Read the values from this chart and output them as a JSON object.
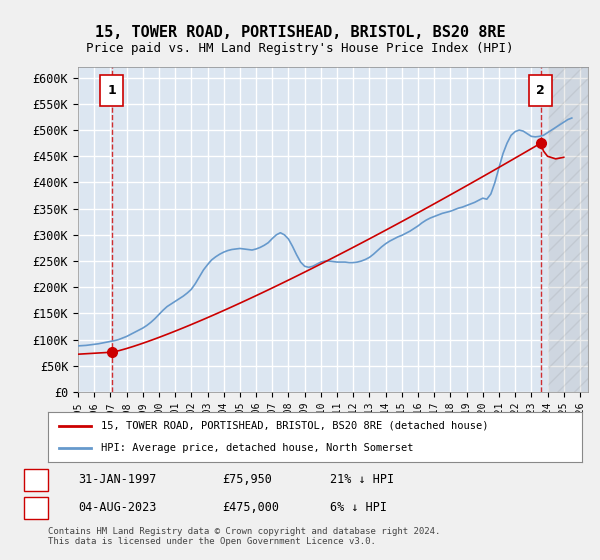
{
  "title": "15, TOWER ROAD, PORTISHEAD, BRISTOL, BS20 8RE",
  "subtitle": "Price paid vs. HM Land Registry's House Price Index (HPI)",
  "ylabel": "",
  "xlabel": "",
  "ylim": [
    0,
    620000
  ],
  "yticks": [
    0,
    50000,
    100000,
    150000,
    200000,
    250000,
    300000,
    350000,
    400000,
    450000,
    500000,
    550000,
    600000
  ],
  "ytick_labels": [
    "£0",
    "£50K",
    "£100K",
    "£150K",
    "£200K",
    "£250K",
    "£300K",
    "£350K",
    "£400K",
    "£450K",
    "£500K",
    "£550K",
    "£600K"
  ],
  "xlim_start": 1995.0,
  "xlim_end": 2026.5,
  "background_color": "#dce6f1",
  "plot_bg_color": "#dce6f1",
  "grid_color": "#ffffff",
  "hpi_color": "#6699cc",
  "price_color": "#cc0000",
  "point1_year": 1997.083,
  "point1_price": 75950,
  "point2_year": 2023.583,
  "point2_price": 475000,
  "legend_line1": "15, TOWER ROAD, PORTISHEAD, BRISTOL, BS20 8RE (detached house)",
  "legend_line2": "HPI: Average price, detached house, North Somerset",
  "table_row1": [
    "1",
    "31-JAN-1997",
    "£75,950",
    "21% ↓ HPI"
  ],
  "table_row2": [
    "2",
    "04-AUG-2023",
    "£475,000",
    "6% ↓ HPI"
  ],
  "copyright": "Contains HM Land Registry data © Crown copyright and database right 2024.\nThis data is licensed under the Open Government Licence v3.0.",
  "future_shade_start": 2024.0,
  "hpi_data_x": [
    1995,
    1995.25,
    1995.5,
    1995.75,
    1996,
    1996.25,
    1996.5,
    1996.75,
    1997,
    1997.25,
    1997.5,
    1997.75,
    1998,
    1998.25,
    1998.5,
    1998.75,
    1999,
    1999.25,
    1999.5,
    1999.75,
    2000,
    2000.25,
    2000.5,
    2000.75,
    2001,
    2001.25,
    2001.5,
    2001.75,
    2002,
    2002.25,
    2002.5,
    2002.75,
    2003,
    2003.25,
    2003.5,
    2003.75,
    2004,
    2004.25,
    2004.5,
    2004.75,
    2005,
    2005.25,
    2005.5,
    2005.75,
    2006,
    2006.25,
    2006.5,
    2006.75,
    2007,
    2007.25,
    2007.5,
    2007.75,
    2008,
    2008.25,
    2008.5,
    2008.75,
    2009,
    2009.25,
    2009.5,
    2009.75,
    2010,
    2010.25,
    2010.5,
    2010.75,
    2011,
    2011.25,
    2011.5,
    2011.75,
    2012,
    2012.25,
    2012.5,
    2012.75,
    2013,
    2013.25,
    2013.5,
    2013.75,
    2014,
    2014.25,
    2014.5,
    2014.75,
    2015,
    2015.25,
    2015.5,
    2015.75,
    2016,
    2016.25,
    2016.5,
    2016.75,
    2017,
    2017.25,
    2017.5,
    2017.75,
    2018,
    2018.25,
    2018.5,
    2018.75,
    2019,
    2019.25,
    2019.5,
    2019.75,
    2020,
    2020.25,
    2020.5,
    2020.75,
    2021,
    2021.25,
    2021.5,
    2021.75,
    2022,
    2022.25,
    2022.5,
    2022.75,
    2023,
    2023.25,
    2023.5,
    2023.75,
    2024,
    2024.25,
    2024.5,
    2024.75,
    2025,
    2025.25,
    2025.5
  ],
  "hpi_data_y": [
    88000,
    88500,
    89000,
    90000,
    91000,
    92000,
    93500,
    95000,
    96500,
    98000,
    100000,
    103000,
    106000,
    110000,
    114000,
    118000,
    122000,
    127000,
    133000,
    140000,
    148000,
    156000,
    163000,
    168000,
    173000,
    178000,
    183000,
    189000,
    196000,
    207000,
    220000,
    233000,
    243000,
    252000,
    258000,
    263000,
    267000,
    270000,
    272000,
    273000,
    274000,
    273000,
    272000,
    271000,
    273000,
    276000,
    280000,
    285000,
    293000,
    300000,
    304000,
    300000,
    292000,
    278000,
    262000,
    248000,
    240000,
    238000,
    240000,
    244000,
    248000,
    250000,
    250000,
    249000,
    248000,
    248000,
    248000,
    247000,
    247000,
    248000,
    250000,
    253000,
    257000,
    263000,
    270000,
    277000,
    283000,
    288000,
    292000,
    296000,
    299000,
    303000,
    307000,
    312000,
    317000,
    323000,
    328000,
    332000,
    335000,
    338000,
    341000,
    343000,
    345000,
    348000,
    351000,
    353000,
    356000,
    359000,
    362000,
    366000,
    370000,
    368000,
    378000,
    400000,
    428000,
    455000,
    475000,
    490000,
    497000,
    500000,
    498000,
    493000,
    488000,
    487000,
    488000,
    490000,
    495000,
    500000,
    505000,
    510000,
    515000,
    520000,
    523000
  ],
  "price_data_x": [
    1997.083,
    2023.583
  ],
  "price_data_y": [
    75950,
    475000
  ]
}
